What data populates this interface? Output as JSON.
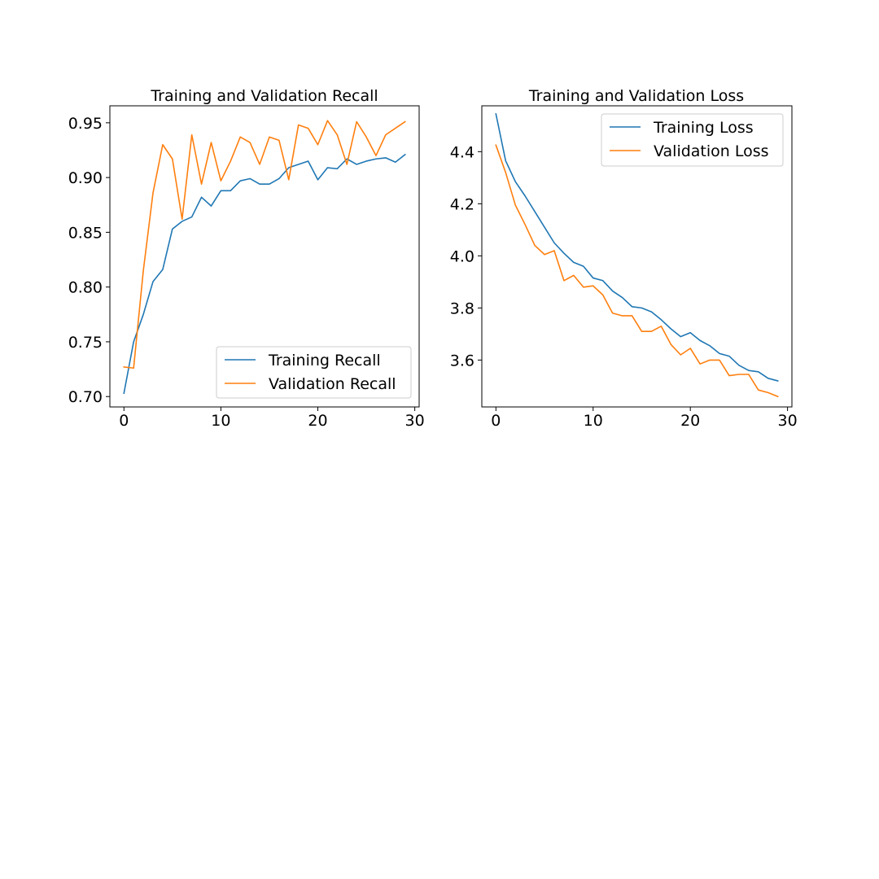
{
  "colors": {
    "training": "#1f77b4",
    "validation": "#ff7f0e",
    "axes": "#000000",
    "legend_border": "#cccccc"
  },
  "chart_data": [
    {
      "type": "line",
      "title": "Training and Validation Recall",
      "xlabel": "",
      "ylabel": "",
      "xlim": [
        -1.45,
        30.45
      ],
      "ylim": [
        0.6905,
        0.9655
      ],
      "xticks": [
        0,
        10,
        20,
        30
      ],
      "xtick_labels": [
        "0",
        "10",
        "20",
        "30"
      ],
      "yticks": [
        0.7,
        0.75,
        0.8,
        0.85,
        0.9,
        0.95
      ],
      "ytick_labels": [
        "0.70",
        "0.75",
        "0.80",
        "0.85",
        "0.90",
        "0.95"
      ],
      "grid": false,
      "legend": "lower-right",
      "x": [
        0,
        1,
        2,
        3,
        4,
        5,
        6,
        7,
        8,
        9,
        10,
        11,
        12,
        13,
        14,
        15,
        16,
        17,
        18,
        19,
        20,
        21,
        22,
        23,
        24,
        25,
        26,
        27,
        28,
        29
      ],
      "series": [
        {
          "name": "Training Recall",
          "color_key": "training",
          "values": [
            0.703,
            0.75,
            0.775,
            0.805,
            0.816,
            0.853,
            0.86,
            0.864,
            0.882,
            0.874,
            0.888,
            0.888,
            0.897,
            0.899,
            0.894,
            0.894,
            0.899,
            0.909,
            0.912,
            0.915,
            0.898,
            0.909,
            0.908,
            0.917,
            0.912,
            0.915,
            0.917,
            0.918,
            0.914,
            0.921
          ]
        },
        {
          "name": "Validation Recall",
          "color_key": "validation",
          "values": [
            0.727,
            0.726,
            0.815,
            0.886,
            0.93,
            0.917,
            0.862,
            0.939,
            0.894,
            0.932,
            0.897,
            0.915,
            0.937,
            0.932,
            0.912,
            0.937,
            0.934,
            0.898,
            0.948,
            0.945,
            0.93,
            0.952,
            0.939,
            0.912,
            0.951,
            0.937,
            0.92,
            0.939,
            0.945,
            0.951
          ]
        }
      ]
    },
    {
      "type": "line",
      "title": "Training and Validation Loss",
      "xlabel": "",
      "ylabel": "",
      "xlim": [
        -1.45,
        30.45
      ],
      "ylim": [
        3.42,
        4.576
      ],
      "xticks": [
        0,
        10,
        20,
        30
      ],
      "xtick_labels": [
        "0",
        "10",
        "20",
        "30"
      ],
      "yticks": [
        3.6,
        3.8,
        4.0,
        4.2,
        4.4
      ],
      "ytick_labels": [
        "3.6",
        "3.8",
        "4.0",
        "4.2",
        "4.4"
      ],
      "grid": false,
      "legend": "upper-right",
      "x": [
        0,
        1,
        2,
        3,
        4,
        5,
        6,
        7,
        8,
        9,
        10,
        11,
        12,
        13,
        14,
        15,
        16,
        17,
        18,
        19,
        20,
        21,
        22,
        23,
        24,
        25,
        26,
        27,
        28,
        29
      ],
      "series": [
        {
          "name": "Training Loss",
          "color_key": "training",
          "values": [
            4.545,
            4.365,
            4.285,
            4.23,
            4.17,
            4.11,
            4.05,
            4.01,
            3.975,
            3.96,
            3.915,
            3.905,
            3.865,
            3.84,
            3.805,
            3.8,
            3.785,
            3.755,
            3.72,
            3.69,
            3.705,
            3.675,
            3.655,
            3.625,
            3.615,
            3.58,
            3.56,
            3.555,
            3.53,
            3.52
          ]
        },
        {
          "name": "Validation Loss",
          "color_key": "validation",
          "values": [
            4.425,
            4.32,
            4.195,
            4.12,
            4.04,
            4.005,
            4.02,
            3.905,
            3.925,
            3.88,
            3.885,
            3.85,
            3.78,
            3.77,
            3.77,
            3.71,
            3.71,
            3.73,
            3.66,
            3.62,
            3.645,
            3.585,
            3.6,
            3.6,
            3.54,
            3.545,
            3.545,
            3.485,
            3.475,
            3.46
          ]
        }
      ]
    }
  ]
}
